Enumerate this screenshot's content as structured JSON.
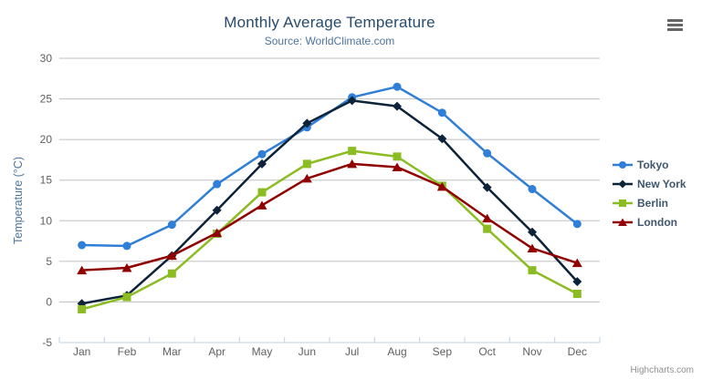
{
  "chart": {
    "title": "Monthly Average Temperature",
    "subtitle": "Source: WorldClimate.com",
    "credits": "Highcharts.com",
    "icons": {
      "context_menu": "hamburger-menu-icon"
    },
    "colors": {
      "title": "#274b6d",
      "subtitle": "#4d759e",
      "axis_title": "#4d759e",
      "tick_label": "#606060",
      "gridline": "#c0c0c0",
      "axis_line": "#c0d0e0",
      "legend_text": "#3e576f",
      "credits": "#909090"
    }
  },
  "chart_data": {
    "type": "line",
    "title": "Monthly Average Temperature",
    "subtitle": "Source: WorldClimate.com",
    "xlabel": "",
    "ylabel": "Temperature (°C)",
    "ylim": [
      -5,
      30
    ],
    "ytick_step": 5,
    "yticks": [
      -5,
      0,
      5,
      10,
      15,
      20,
      25,
      30
    ],
    "grid": true,
    "legend_position": "right",
    "categories": [
      "Jan",
      "Feb",
      "Mar",
      "Apr",
      "May",
      "Jun",
      "Jul",
      "Aug",
      "Sep",
      "Oct",
      "Nov",
      "Dec"
    ],
    "series": [
      {
        "name": "Tokyo",
        "color": "#2f7ed8",
        "marker": "circle",
        "values": [
          7.0,
          6.9,
          9.5,
          14.5,
          18.2,
          21.5,
          25.2,
          26.5,
          23.3,
          18.3,
          13.9,
          9.6
        ]
      },
      {
        "name": "New York",
        "color": "#0d233a",
        "marker": "diamond",
        "values": [
          -0.2,
          0.8,
          5.7,
          11.3,
          17.0,
          22.0,
          24.8,
          24.1,
          20.1,
          14.1,
          8.6,
          2.5
        ]
      },
      {
        "name": "Berlin",
        "color": "#8bbc21",
        "marker": "square",
        "values": [
          -0.9,
          0.6,
          3.5,
          8.4,
          13.5,
          17.0,
          18.6,
          17.9,
          14.3,
          9.0,
          3.9,
          1.0
        ]
      },
      {
        "name": "London",
        "color": "#910000",
        "marker": "triangle",
        "values": [
          3.9,
          4.2,
          5.7,
          8.5,
          11.9,
          15.2,
          17.0,
          16.6,
          14.2,
          10.3,
          6.6,
          4.8
        ]
      }
    ]
  }
}
